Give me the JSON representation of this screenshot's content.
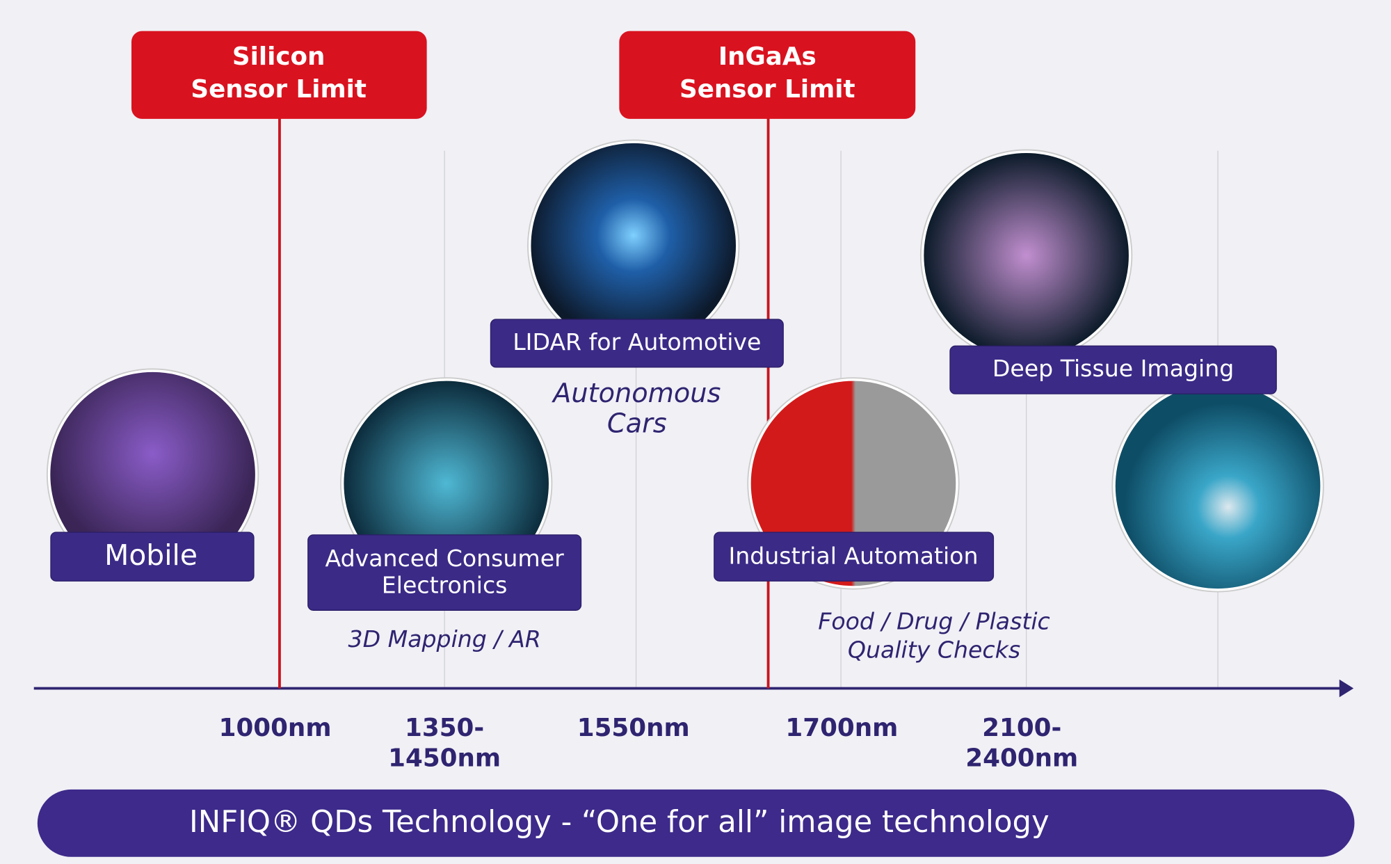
{
  "limits": [
    {
      "lines": [
        "Silicon",
        "Sensor Limit"
      ]
    },
    {
      "lines": [
        "InGaAs",
        "Sensor Limit"
      ]
    }
  ],
  "applications": [
    {
      "label": [
        "Mobile"
      ],
      "caption": []
    },
    {
      "label": [
        "Advanced Consumer",
        "Electronics"
      ],
      "caption": [
        "3D Mapping / AR"
      ]
    },
    {
      "label": [
        "LIDAR for Automotive"
      ],
      "caption": [
        "Autonomous",
        "Cars"
      ]
    },
    {
      "label": [
        "Industrial Automation"
      ],
      "caption": [
        "Food / Drug / Plastic",
        "Quality Checks"
      ]
    },
    {
      "label": [
        "Deep Tissue Imaging"
      ],
      "caption": []
    }
  ],
  "wavelengths": [
    [
      "1000nm"
    ],
    [
      "1350-",
      "1450nm"
    ],
    [
      "1550nm"
    ],
    [
      "1700nm"
    ],
    [
      "2100-",
      "2400nm"
    ]
  ],
  "banner": "INFIQ® QDs Technology -  “One for all” image technology"
}
